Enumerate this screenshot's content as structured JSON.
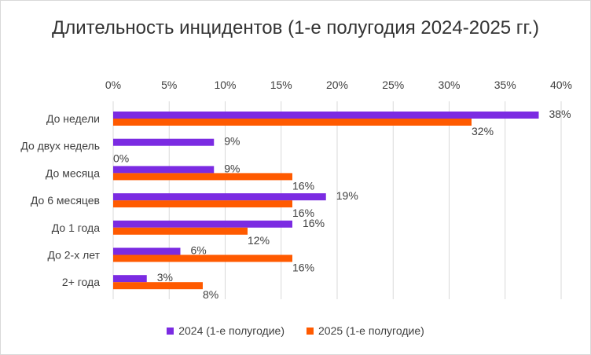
{
  "chart_data": {
    "type": "bar",
    "orientation": "horizontal",
    "title": "Длительность инцидентов (1-е полугодия 2024-2025 гг.)",
    "categories": [
      "До недели",
      "До двух недель",
      "До месяца",
      "До 6 месяцев",
      "До 1 года",
      "До 2-х лет",
      "2+ года"
    ],
    "series": [
      {
        "name": "2024 (1-е полугодие)",
        "color": "#7b2be2",
        "values": [
          38,
          9,
          9,
          19,
          16,
          6,
          3
        ]
      },
      {
        "name": "2025 (1-е полугодие)",
        "color": "#ff5a00",
        "values": [
          32,
          0,
          16,
          16,
          12,
          16,
          8
        ]
      }
    ],
    "x_ticks": [
      "0%",
      "5%",
      "10%",
      "15%",
      "20%",
      "25%",
      "30%",
      "35%",
      "40%"
    ],
    "xlim": [
      0,
      40
    ],
    "value_suffix": "%",
    "grid": true,
    "axis_position": "top",
    "legend_position": "bottom"
  }
}
